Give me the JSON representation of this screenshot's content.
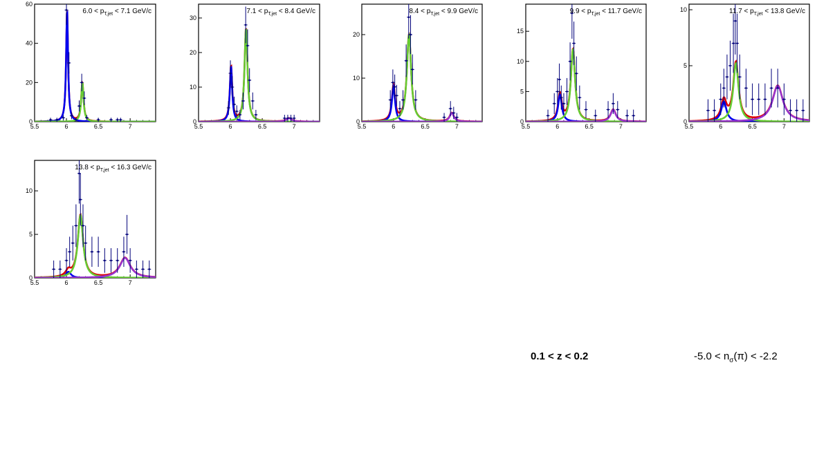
{
  "chart_data": [
    {
      "type": "scatter",
      "title": "6.0 < p_{T,jet} < 7.1 GeV/c",
      "title_parts": {
        "pre": "6.0 < p",
        "sub": "T,jet",
        "post": " < 7.1 GeV/c"
      },
      "xlim": [
        5.5,
        7.4
      ],
      "ylim": [
        0,
        60
      ],
      "xticks": [
        5.5,
        6,
        6.5,
        7
      ],
      "yticks": [
        0,
        20,
        40,
        60
      ],
      "grid": false,
      "legend": "none",
      "points": [
        [
          5.75,
          1
        ],
        [
          5.85,
          1
        ],
        [
          5.95,
          2
        ],
        [
          6.0,
          57
        ],
        [
          6.04,
          30
        ],
        [
          6.08,
          3
        ],
        [
          6.15,
          1
        ],
        [
          6.2,
          8
        ],
        [
          6.24,
          20
        ],
        [
          6.28,
          12
        ],
        [
          6.32,
          2
        ],
        [
          6.5,
          1
        ],
        [
          6.7,
          1
        ],
        [
          6.8,
          1
        ],
        [
          6.85,
          1
        ]
      ],
      "peaks": [
        {
          "color": "#0000ee",
          "mu": 6.01,
          "sigma": 0.018,
          "amp": 57
        },
        {
          "color": "#66cc33",
          "mu": 6.25,
          "sigma": 0.022,
          "amp": 20
        }
      ],
      "total_color": "#dd0000"
    },
    {
      "type": "scatter",
      "title": "7.1 < p_{T,jet} < 8.4 GeV/c",
      "title_parts": {
        "pre": "7.1 < p",
        "sub": "T,jet",
        "post": " < 8.4 GeV/c"
      },
      "xlim": [
        5.5,
        7.4
      ],
      "ylim": [
        0,
        34
      ],
      "xticks": [
        5.5,
        6,
        6.5,
        7
      ],
      "yticks": [
        0,
        10,
        20,
        30
      ],
      "grid": false,
      "legend": "none",
      "points": [
        [
          5.97,
          4
        ],
        [
          6.0,
          14
        ],
        [
          6.03,
          10
        ],
        [
          6.06,
          5
        ],
        [
          6.1,
          3
        ],
        [
          6.15,
          2
        ],
        [
          6.2,
          6
        ],
        [
          6.24,
          28
        ],
        [
          6.27,
          22
        ],
        [
          6.3,
          12
        ],
        [
          6.35,
          6
        ],
        [
          6.4,
          2
        ],
        [
          6.85,
          1
        ],
        [
          6.9,
          1
        ],
        [
          6.95,
          1
        ],
        [
          7.0,
          1
        ]
      ],
      "peaks": [
        {
          "color": "#0000ee",
          "mu": 6.01,
          "sigma": 0.022,
          "amp": 16
        },
        {
          "color": "#66cc33",
          "mu": 6.245,
          "sigma": 0.028,
          "amp": 27
        },
        {
          "color": "#9933cc",
          "mu": 6.92,
          "sigma": 0.05,
          "amp": 1
        }
      ],
      "total_color": "#dd0000"
    },
    {
      "type": "scatter",
      "title": "8.4 < p_{T,jet} < 9.9 GeV/c",
      "title_parts": {
        "pre": "8.4 < p",
        "sub": "T,jet",
        "post": " < 9.9 GeV/c"
      },
      "xlim": [
        5.5,
        7.4
      ],
      "ylim": [
        0,
        27
      ],
      "xticks": [
        5.5,
        6,
        6.5,
        7
      ],
      "yticks": [
        0,
        10,
        20
      ],
      "grid": false,
      "legend": "none",
      "points": [
        [
          5.95,
          5
        ],
        [
          5.99,
          9
        ],
        [
          6.02,
          8
        ],
        [
          6.05,
          6
        ],
        [
          6.1,
          3
        ],
        [
          6.15,
          5
        ],
        [
          6.2,
          14
        ],
        [
          6.24,
          24
        ],
        [
          6.27,
          20
        ],
        [
          6.3,
          12
        ],
        [
          6.35,
          5
        ],
        [
          6.8,
          1
        ],
        [
          6.9,
          3
        ],
        [
          6.95,
          2
        ],
        [
          7.0,
          1
        ]
      ],
      "peaks": [
        {
          "color": "#0000ee",
          "mu": 6.0,
          "sigma": 0.03,
          "amp": 8
        },
        {
          "color": "#66cc33",
          "mu": 6.245,
          "sigma": 0.04,
          "amp": 20
        },
        {
          "color": "#9933cc",
          "mu": 6.92,
          "sigma": 0.04,
          "amp": 2
        }
      ],
      "total_color": "#dd0000"
    },
    {
      "type": "scatter",
      "title": "9.9 < p_{T,jet} < 11.7 GeV/c",
      "title_parts": {
        "pre": "9.9 < p",
        "sub": "T,jet",
        "post": " < 11.7 GeV/c"
      },
      "xlim": [
        5.5,
        7.4
      ],
      "ylim": [
        0,
        19.5
      ],
      "xticks": [
        5.5,
        6,
        6.5,
        7
      ],
      "yticks": [
        0,
        5,
        10,
        15
      ],
      "grid": false,
      "legend": "none",
      "points": [
        [
          5.85,
          1
        ],
        [
          5.95,
          3
        ],
        [
          6.0,
          5
        ],
        [
          6.03,
          7
        ],
        [
          6.06,
          4
        ],
        [
          6.1,
          3
        ],
        [
          6.15,
          5
        ],
        [
          6.2,
          10
        ],
        [
          6.23,
          18
        ],
        [
          6.26,
          13
        ],
        [
          6.3,
          8
        ],
        [
          6.35,
          4
        ],
        [
          6.45,
          2
        ],
        [
          6.6,
          1
        ],
        [
          6.8,
          2
        ],
        [
          6.88,
          3
        ],
        [
          6.95,
          2
        ],
        [
          7.1,
          1
        ],
        [
          7.2,
          1
        ]
      ],
      "peaks": [
        {
          "color": "#0000ee",
          "mu": 6.04,
          "sigma": 0.035,
          "amp": 4.5
        },
        {
          "color": "#66cc33",
          "mu": 6.245,
          "sigma": 0.04,
          "amp": 12
        },
        {
          "color": "#9933cc",
          "mu": 6.88,
          "sigma": 0.05,
          "amp": 2
        }
      ],
      "total_color": "#dd0000"
    },
    {
      "type": "scatter",
      "title": "11.7 < p_{T,jet} < 13.8 GeV/c",
      "title_parts": {
        "pre": "11.7 < p",
        "sub": "T,jet",
        "post": " < 13.8 GeV/c"
      },
      "xlim": [
        5.5,
        7.4
      ],
      "ylim": [
        0,
        10.5
      ],
      "xticks": [
        5.5,
        6,
        6.5,
        7
      ],
      "yticks": [
        0,
        5,
        10
      ],
      "grid": false,
      "legend": "none",
      "points": [
        [
          5.8,
          1
        ],
        [
          5.9,
          1
        ],
        [
          6.0,
          2
        ],
        [
          6.05,
          3
        ],
        [
          6.1,
          4
        ],
        [
          6.15,
          5
        ],
        [
          6.2,
          7
        ],
        [
          6.23,
          9
        ],
        [
          6.26,
          7
        ],
        [
          6.3,
          4
        ],
        [
          6.4,
          3
        ],
        [
          6.5,
          2
        ],
        [
          6.6,
          2
        ],
        [
          6.7,
          2
        ],
        [
          6.8,
          3
        ],
        [
          6.9,
          3
        ],
        [
          7.0,
          2
        ],
        [
          7.1,
          1
        ],
        [
          7.2,
          1
        ],
        [
          7.3,
          1
        ]
      ],
      "peaks": [
        {
          "color": "#0000ee",
          "mu": 6.05,
          "sigma": 0.05,
          "amp": 1.8
        },
        {
          "color": "#66cc33",
          "mu": 6.24,
          "sigma": 0.05,
          "amp": 5.2
        },
        {
          "color": "#9933cc",
          "mu": 6.9,
          "sigma": 0.1,
          "amp": 3.2
        }
      ],
      "total_color": "#dd0000"
    },
    {
      "type": "scatter",
      "title": "13.8 < p_{T,jet} < 16.3 GeV/c",
      "title_parts": {
        "pre": "13.8 < p",
        "sub": "T,jet",
        "post": " < 16.3 GeV/c"
      },
      "xlim": [
        5.5,
        7.4
      ],
      "ylim": [
        0,
        13.5
      ],
      "xticks": [
        5.5,
        6,
        6.5,
        7
      ],
      "yticks": [
        0,
        5,
        10
      ],
      "grid": false,
      "legend": "none",
      "points": [
        [
          5.8,
          1
        ],
        [
          5.9,
          1
        ],
        [
          6.0,
          2
        ],
        [
          6.05,
          3
        ],
        [
          6.1,
          4
        ],
        [
          6.15,
          6
        ],
        [
          6.2,
          12
        ],
        [
          6.22,
          9
        ],
        [
          6.26,
          6
        ],
        [
          6.3,
          4
        ],
        [
          6.4,
          3
        ],
        [
          6.5,
          3
        ],
        [
          6.6,
          2
        ],
        [
          6.7,
          2
        ],
        [
          6.8,
          2
        ],
        [
          6.9,
          3
        ],
        [
          6.95,
          5
        ],
        [
          7.0,
          2
        ],
        [
          7.1,
          1
        ],
        [
          7.2,
          1
        ],
        [
          7.3,
          1
        ]
      ],
      "peaks": [
        {
          "color": "#0000ee",
          "mu": 6.03,
          "sigma": 0.05,
          "amp": 0.7
        },
        {
          "color": "#66cc33",
          "mu": 6.22,
          "sigma": 0.05,
          "amp": 7.2
        },
        {
          "color": "#9933cc",
          "mu": 6.92,
          "sigma": 0.1,
          "amp": 2.3
        }
      ],
      "total_color": "#dd0000"
    }
  ],
  "footer": {
    "z_range": "0.1 < z < 0.2",
    "nsigma_pre": "-5.0 < n",
    "nsigma_sub": "σ",
    "nsigma_post": "(π) < -2.2"
  },
  "colors": {
    "data_markers": "#00007a",
    "axis": "#000000",
    "peak1": "#0000ee",
    "peak2": "#66cc33",
    "peak3": "#9933cc",
    "total": "#dd0000"
  }
}
